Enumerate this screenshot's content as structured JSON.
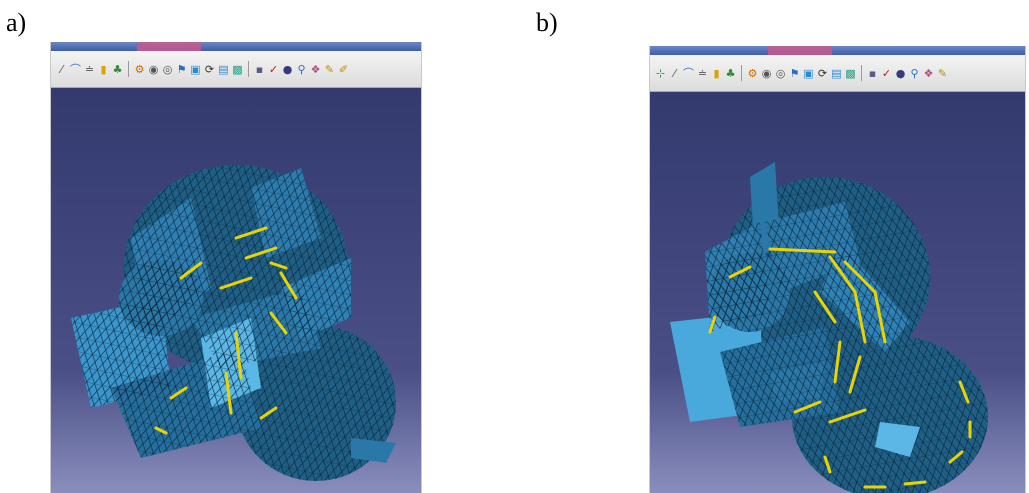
{
  "panels": [
    {
      "label": "a)",
      "toolbar_icons": [
        {
          "name": "pin-icon",
          "glyph": "⁄",
          "color": "#555555"
        },
        {
          "name": "curve-tool-icon",
          "glyph": "⌒",
          "color": "#2c6fc0"
        },
        {
          "name": "measure-icon",
          "glyph": "≐",
          "color": "#555555"
        },
        {
          "name": "chart-icon",
          "glyph": "▮",
          "color": "#e0a000"
        },
        {
          "name": "palette-icon",
          "glyph": "♣",
          "color": "#2e8b3a"
        },
        {
          "name": "sep",
          "glyph": "",
          "color": ""
        },
        {
          "name": "gear-icon",
          "glyph": "⚙",
          "color": "#d06a00"
        },
        {
          "name": "mesh-icon",
          "glyph": "◉",
          "color": "#555555"
        },
        {
          "name": "settings-icon",
          "glyph": "◎",
          "color": "#555555"
        },
        {
          "name": "flag-icon",
          "glyph": "⚑",
          "color": "#2b6dbf"
        },
        {
          "name": "frame-icon",
          "glyph": "▣",
          "color": "#2a8bd0"
        },
        {
          "name": "rotate-icon",
          "glyph": "⟳",
          "color": "#333333"
        },
        {
          "name": "view-icon",
          "glyph": "▤",
          "color": "#2a8bd0"
        },
        {
          "name": "box-icon",
          "glyph": "▩",
          "color": "#2aa08a"
        },
        {
          "name": "sep",
          "glyph": "",
          "color": ""
        },
        {
          "name": "small-box-icon",
          "glyph": "▪",
          "color": "#5a5a8a"
        },
        {
          "name": "check-icon",
          "glyph": "✓",
          "color": "#b02020"
        },
        {
          "name": "sphere-icon",
          "glyph": "●",
          "color": "#3a3a7a"
        },
        {
          "name": "zoom-icon",
          "glyph": "⚲",
          "color": "#2b6dbf"
        },
        {
          "name": "grid-icon",
          "glyph": "❖",
          "color": "#b0507a"
        },
        {
          "name": "pencil-icon",
          "glyph": "✎",
          "color": "#c08a00"
        },
        {
          "name": "brush-icon",
          "glyph": "✐",
          "color": "#c08a00"
        }
      ]
    },
    {
      "label": "b)",
      "toolbar_icons": [
        {
          "name": "dimension-icon",
          "glyph": "⊹",
          "color": "#2e8b3a"
        },
        {
          "name": "pin-icon",
          "glyph": "⁄",
          "color": "#555555"
        },
        {
          "name": "curve-tool-icon",
          "glyph": "⌒",
          "color": "#2c6fc0"
        },
        {
          "name": "measure-icon",
          "glyph": "≐",
          "color": "#555555"
        },
        {
          "name": "chart-icon",
          "glyph": "▮",
          "color": "#e0a000"
        },
        {
          "name": "palette-icon",
          "glyph": "♣",
          "color": "#2e8b3a"
        },
        {
          "name": "sep",
          "glyph": "",
          "color": ""
        },
        {
          "name": "gear-icon",
          "glyph": "⚙",
          "color": "#d06a00"
        },
        {
          "name": "mesh-icon",
          "glyph": "◉",
          "color": "#555555"
        },
        {
          "name": "settings-icon",
          "glyph": "◎",
          "color": "#555555"
        },
        {
          "name": "flag-icon",
          "glyph": "⚑",
          "color": "#2b6dbf"
        },
        {
          "name": "frame-icon",
          "glyph": "▣",
          "color": "#2a8bd0"
        },
        {
          "name": "rotate-icon",
          "glyph": "⟳",
          "color": "#333333"
        },
        {
          "name": "view-icon",
          "glyph": "▤",
          "color": "#2a8bd0"
        },
        {
          "name": "box-icon",
          "glyph": "▩",
          "color": "#2aa08a"
        },
        {
          "name": "sep",
          "glyph": "",
          "color": ""
        },
        {
          "name": "small-box-icon",
          "glyph": "▪",
          "color": "#5a5a8a"
        },
        {
          "name": "check-icon",
          "glyph": "✓",
          "color": "#b02020"
        },
        {
          "name": "sphere-icon",
          "glyph": "●",
          "color": "#3a3a7a"
        },
        {
          "name": "zoom-icon",
          "glyph": "⚲",
          "color": "#2b6dbf"
        },
        {
          "name": "grid-icon",
          "glyph": "❖",
          "color": "#b0507a"
        },
        {
          "name": "pencil-icon",
          "glyph": "✎",
          "color": "#c08a00"
        }
      ]
    }
  ],
  "colors": {
    "background_top": "#333a6e",
    "background_bottom": "#7f83b4",
    "mesh_fill": "#1f5f86",
    "mesh_fill_light": "#4aa9dc",
    "mesh_edge": "#0a2438",
    "arrow": "#e8d400"
  }
}
